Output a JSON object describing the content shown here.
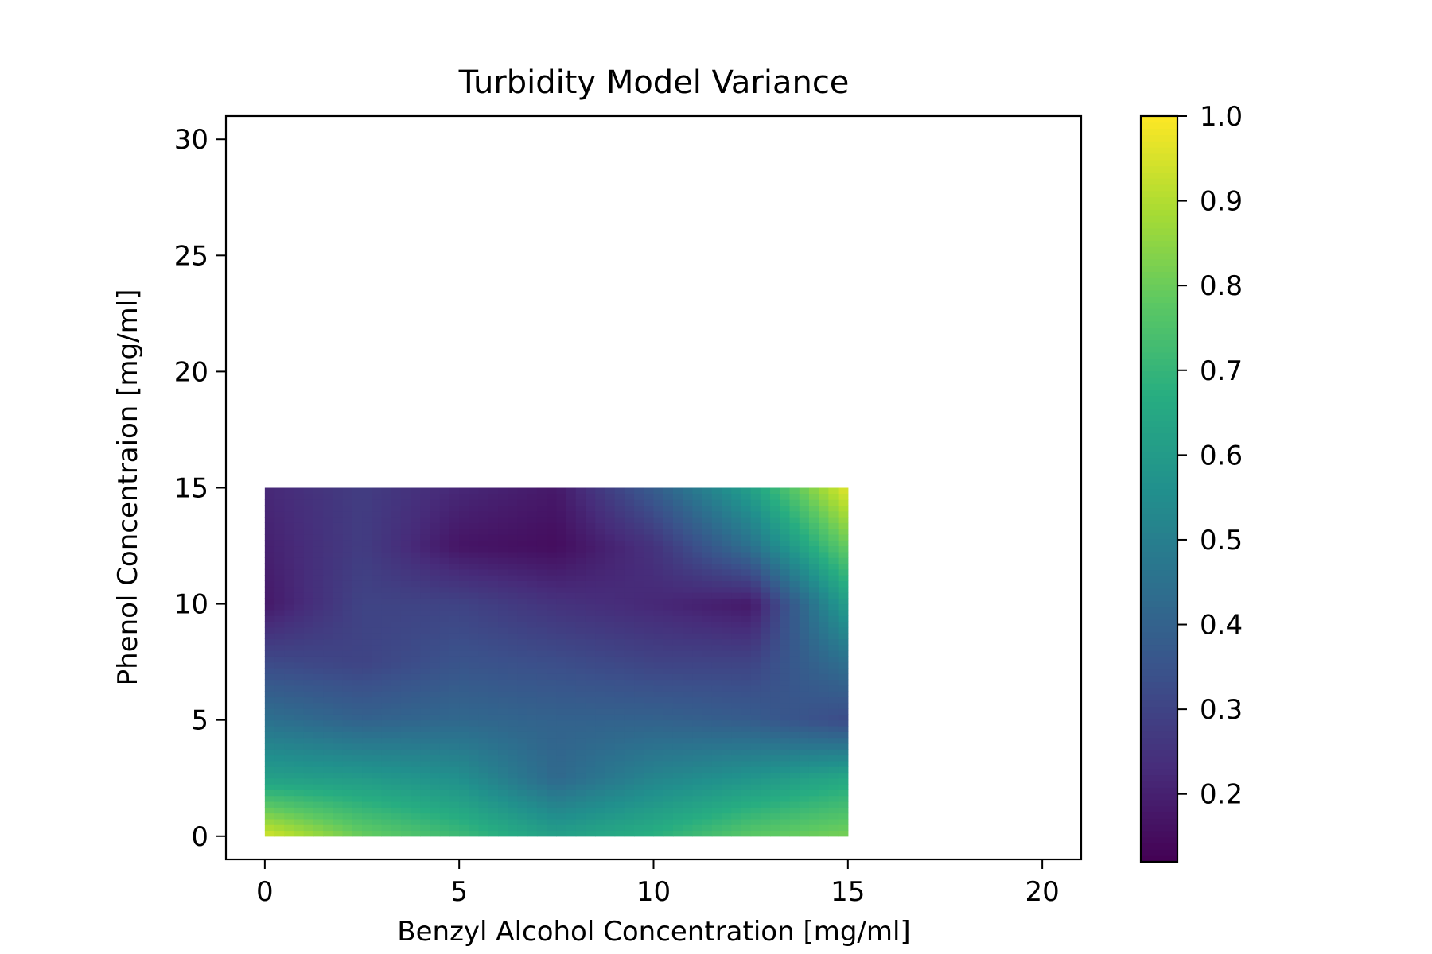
{
  "chart_data": {
    "type": "heatmap",
    "title": "Turbidity Model Variance",
    "xlabel": "Benzyl Alcohol Concentration [mg/ml]",
    "ylabel": "Phenol Concentraion [mg/ml]",
    "xlim": [
      -1,
      21
    ],
    "ylim": [
      -1,
      31
    ],
    "x_ticks": [
      0,
      5,
      10,
      15,
      20
    ],
    "y_ticks": [
      0,
      5,
      10,
      15,
      20,
      25,
      30
    ],
    "grid": false,
    "colormap": "viridis",
    "colorbar": {
      "range": [
        0.12,
        1.0
      ],
      "ticks": [
        0.2,
        0.3,
        0.4,
        0.5,
        0.6,
        0.7,
        0.8,
        0.9,
        1.0
      ],
      "tick_labels": [
        "0.2",
        "0.3",
        "0.4",
        "0.5",
        "0.6",
        "0.7",
        "0.8",
        "0.9",
        "1.0"
      ]
    },
    "x_tick_labels": [
      "0",
      "5",
      "10",
      "15",
      "20"
    ],
    "y_tick_labels": [
      "0",
      "5",
      "10",
      "15",
      "20",
      "25",
      "30"
    ],
    "heatmap": {
      "x_extent": [
        0,
        15
      ],
      "y_extent": [
        0,
        15
      ],
      "x": [
        0,
        2.5,
        5,
        7.5,
        10,
        12.5,
        15
      ],
      "y": [
        0,
        2.5,
        5,
        7.5,
        10,
        12.5,
        15
      ],
      "values": [
        [
          0.95,
          0.8,
          0.72,
          0.62,
          0.68,
          0.78,
          0.82
        ],
        [
          0.62,
          0.6,
          0.56,
          0.42,
          0.52,
          0.58,
          0.65
        ],
        [
          0.45,
          0.4,
          0.42,
          0.4,
          0.4,
          0.38,
          0.32
        ],
        [
          0.32,
          0.3,
          0.35,
          0.33,
          0.3,
          0.3,
          0.45
        ],
        [
          0.18,
          0.3,
          0.3,
          0.25,
          0.22,
          0.18,
          0.62
        ],
        [
          0.2,
          0.28,
          0.17,
          0.15,
          0.25,
          0.45,
          0.8
        ],
        [
          0.22,
          0.28,
          0.22,
          0.18,
          0.38,
          0.62,
          0.97
        ]
      ]
    }
  }
}
